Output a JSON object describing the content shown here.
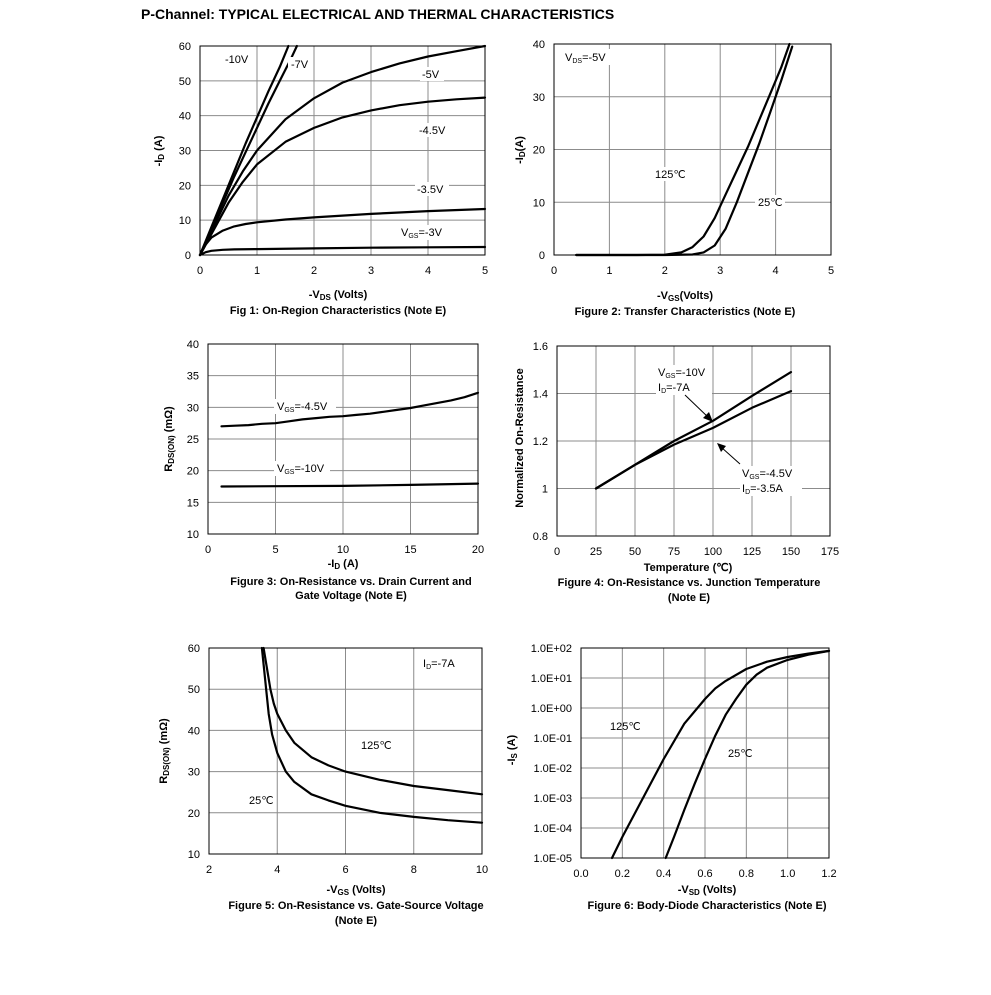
{
  "page": {
    "title": "P-Channel: TYPICAL ELECTRICAL AND THERMAL CHARACTERISTICS"
  },
  "chart_data": [
    {
      "type": "line",
      "title": "Fig 1: On-Region Characteristics (Note E)",
      "xlabel": "-VDS (Volts)",
      "ylabel": "-ID (A)",
      "xlim": [
        0,
        5
      ],
      "ylim": [
        0,
        60
      ],
      "xticks": [
        0,
        1,
        2,
        3,
        4,
        5
      ],
      "yticks": [
        0,
        10,
        20,
        30,
        40,
        50,
        60
      ],
      "grid": true,
      "series": [
        {
          "name": "-10V",
          "x": [
            0,
            0.2,
            0.4,
            0.6,
            0.8,
            1.0,
            1.2,
            1.4,
            1.55
          ],
          "y": [
            0,
            8,
            16,
            24,
            32,
            39.5,
            47,
            54,
            60
          ]
        },
        {
          "name": "-7V",
          "x": [
            0,
            0.2,
            0.4,
            0.6,
            0.8,
            1.0,
            1.2,
            1.4,
            1.6,
            1.7
          ],
          "y": [
            0,
            7.5,
            15,
            22.5,
            29.5,
            36.5,
            43.5,
            50,
            56.5,
            60
          ]
        },
        {
          "name": "-5V",
          "x": [
            0,
            0.25,
            0.5,
            0.75,
            1.0,
            1.5,
            2.0,
            2.5,
            3.0,
            3.5,
            4.0,
            4.5,
            5.0
          ],
          "y": [
            0,
            8.5,
            17,
            24,
            30,
            39,
            45,
            49.5,
            52.5,
            55,
            57,
            58.5,
            60
          ]
        },
        {
          "name": "-4.5V",
          "x": [
            0,
            0.25,
            0.5,
            0.75,
            1.0,
            1.5,
            2.0,
            2.5,
            3.0,
            3.5,
            4.0,
            4.5,
            5.0
          ],
          "y": [
            0,
            7.5,
            15,
            21,
            26,
            32.5,
            36.5,
            39.5,
            41.5,
            43,
            44,
            44.7,
            45.2
          ]
        },
        {
          "name": "-3.5V",
          "x": [
            0,
            0.1,
            0.2,
            0.4,
            0.6,
            0.8,
            1.0,
            1.5,
            2.0,
            3.0,
            4.0,
            5.0
          ],
          "y": [
            0,
            3,
            5,
            7,
            8.2,
            8.9,
            9.4,
            10.2,
            10.8,
            11.8,
            12.6,
            13.2
          ]
        },
        {
          "name": "VGS=-3V",
          "x": [
            0,
            0.1,
            0.2,
            0.4,
            0.6,
            1.0,
            2.0,
            3.0,
            4.0,
            5.0
          ],
          "y": [
            0,
            0.8,
            1.2,
            1.5,
            1.6,
            1.7,
            1.9,
            2.1,
            2.2,
            2.3
          ]
        }
      ],
      "annotations": [
        "-10V",
        "-7V",
        "-5V",
        "-4.5V",
        "-3.5V",
        "VGS=-3V"
      ]
    },
    {
      "type": "line",
      "title": "Figure 2: Transfer Characteristics (Note E)",
      "xlabel": "-VGS(Volts)",
      "ylabel": "-ID (A)",
      "xlim": [
        0,
        5
      ],
      "ylim": [
        0,
        40
      ],
      "xticks": [
        0,
        1,
        2,
        3,
        4,
        5
      ],
      "yticks": [
        0,
        10,
        20,
        30,
        40
      ],
      "grid": true,
      "series": [
        {
          "name": "125℃",
          "x": [
            0.4,
            1.5,
            2.0,
            2.3,
            2.5,
            2.7,
            2.9,
            3.1,
            3.3,
            3.5,
            3.7,
            3.9,
            4.1,
            4.25
          ],
          "y": [
            0,
            0,
            0.05,
            0.5,
            1.5,
            3.5,
            7,
            11.5,
            16,
            20.5,
            25.5,
            30.5,
            35.5,
            40
          ]
        },
        {
          "name": "25℃",
          "x": [
            0.4,
            1.5,
            2.0,
            2.5,
            2.7,
            2.9,
            3.1,
            3.3,
            3.5,
            3.7,
            3.9,
            4.1,
            4.3
          ],
          "y": [
            0,
            0,
            0,
            0.1,
            0.5,
            1.8,
            5,
            10,
            15.5,
            21,
            27,
            33,
            39.5
          ]
        }
      ],
      "annotations": [
        "VDS=-5V",
        "125℃",
        "25℃"
      ]
    },
    {
      "type": "line",
      "title": "Figure 3: On-Resistance vs. Drain Current and Gate Voltage (Note E)",
      "xlabel": "-ID (A)",
      "ylabel": "RDS(ON) (mΩ)",
      "xlim": [
        0,
        20
      ],
      "ylim": [
        10,
        40
      ],
      "xticks": [
        0,
        5,
        10,
        15,
        20
      ],
      "yticks": [
        10,
        15,
        20,
        25,
        30,
        35,
        40
      ],
      "grid": true,
      "series": [
        {
          "name": "VGS=-4.5V",
          "x": [
            1,
            2,
            3,
            4,
            5,
            6,
            7,
            8,
            9,
            10,
            11,
            12,
            13,
            14,
            15,
            16,
            17,
            18,
            19,
            20
          ],
          "y": [
            27,
            27.1,
            27.2,
            27.4,
            27.5,
            27.8,
            28.1,
            28.3,
            28.5,
            28.6,
            28.8,
            29,
            29.3,
            29.6,
            29.9,
            30.3,
            30.7,
            31.1,
            31.6,
            32.3
          ]
        },
        {
          "name": "VGS=-10V",
          "x": [
            1,
            5,
            10,
            15,
            20
          ],
          "y": [
            17.5,
            17.55,
            17.6,
            17.75,
            17.95
          ]
        }
      ],
      "annotations": [
        "VGS=-4.5V",
        "VGS=-10V"
      ]
    },
    {
      "type": "line",
      "title": "Figure 4: On-Resistance vs. Junction Temperature (Note E)",
      "xlabel": "Temperature (℃)",
      "ylabel": "Normalized On-Resistance",
      "xlim": [
        0,
        175
      ],
      "ylim": [
        0.8,
        1.6
      ],
      "xticks": [
        0,
        25,
        50,
        75,
        100,
        125,
        150,
        175
      ],
      "yticks": [
        0.8,
        1,
        1.2,
        1.4,
        1.6
      ],
      "grid": true,
      "series": [
        {
          "name": "VGS=-10V ID=-7A",
          "x": [
            25,
            50,
            75,
            100,
            125,
            150
          ],
          "y": [
            1.0,
            1.1,
            1.2,
            1.285,
            1.39,
            1.49
          ]
        },
        {
          "name": "VGS=-4.5V ID=-3.5A",
          "x": [
            25,
            50,
            75,
            100,
            125,
            150
          ],
          "y": [
            1.0,
            1.1,
            1.185,
            1.255,
            1.34,
            1.41
          ]
        }
      ],
      "annotations": [
        "VGS=-10V",
        "ID=-7A",
        "VGS=-4.5V",
        "ID=-3.5A"
      ]
    },
    {
      "type": "line",
      "title": "Figure 5: On-Resistance vs. Gate-Source Voltage (Note E)",
      "xlabel": "-VGS (Volts)",
      "ylabel": "RDS(ON) (mΩ)",
      "xlim": [
        2,
        10
      ],
      "ylim": [
        10,
        60
      ],
      "xticks": [
        2,
        4,
        6,
        8,
        10
      ],
      "yticks": [
        10,
        20,
        30,
        40,
        50,
        60
      ],
      "grid": true,
      "series": [
        {
          "name": "125℃",
          "x": [
            3.6,
            3.7,
            3.8,
            3.9,
            4.0,
            4.25,
            4.5,
            5.0,
            5.5,
            6.0,
            7.0,
            8.0,
            9.0,
            10.0
          ],
          "y": [
            60,
            55,
            50,
            46.5,
            44,
            40,
            37,
            33.5,
            31.5,
            30,
            28,
            26.5,
            25.5,
            24.5
          ]
        },
        {
          "name": "25℃",
          "x": [
            3.55,
            3.65,
            3.75,
            3.85,
            4.0,
            4.25,
            4.5,
            5.0,
            5.5,
            6.0,
            7.0,
            8.0,
            9.0,
            10.0
          ],
          "y": [
            60,
            52,
            44,
            39,
            34.5,
            30,
            27.5,
            24.5,
            23,
            21.7,
            20,
            19,
            18.2,
            17.6
          ]
        }
      ],
      "annotations": [
        "ID=-7A",
        "125℃",
        "25℃"
      ]
    },
    {
      "type": "line",
      "title": "Figure 6: Body-Diode Characteristics (Note E)",
      "xlabel": "-VSD (Volts)",
      "ylabel": "-IS (A)",
      "xlim": [
        0.0,
        1.2
      ],
      "ylim": [
        "1.0E-05",
        "1.0E+02"
      ],
      "yscale": "log",
      "xticks": [
        "0.0",
        "0.2",
        "0.4",
        "0.6",
        "0.8",
        "1.0",
        "1.2"
      ],
      "yticks": [
        "1.0E-05",
        "1.0E-04",
        "1.0E-03",
        "1.0E-02",
        "1.0E-01",
        "1.0E+00",
        "1.0E+01",
        "1.0E+02"
      ],
      "grid": true,
      "series": [
        {
          "name": "125℃",
          "x": [
            0.15,
            0.2,
            0.3,
            0.4,
            0.5,
            0.6,
            0.65,
            0.7,
            0.8,
            0.9,
            1.0,
            1.1,
            1.2
          ],
          "y": [
            1e-05,
            5e-05,
            0.001,
            0.02,
            0.3,
            2,
            4.5,
            8,
            20,
            35,
            50,
            65,
            80
          ]
        },
        {
          "name": "25℃",
          "x": [
            0.41,
            0.45,
            0.5,
            0.55,
            0.6,
            0.65,
            0.7,
            0.75,
            0.8,
            0.85,
            0.9,
            1.0,
            1.1,
            1.2
          ],
          "y": [
            1e-05,
            5e-05,
            0.0004,
            0.003,
            0.02,
            0.12,
            0.6,
            2,
            6,
            13,
            22,
            40,
            60,
            80
          ]
        }
      ],
      "annotations": [
        "125℃",
        "25℃"
      ]
    }
  ],
  "labels": {
    "c1": {
      "ylabel_main": "-I",
      "ylabel_sub": "D",
      "ylabel_tail": " (A)",
      "xlabel_main": "-V",
      "xlabel_sub": "DS",
      "xlabel_tail": " (Volts)",
      "ann_10v": "-10V",
      "ann_7v": "-7V",
      "ann_5v": "-5V",
      "ann_45v": "-4.5V",
      "ann_35v": "-3.5V",
      "ann_3v_main": "V",
      "ann_3v_sub": "GS",
      "ann_3v_tail": "=-3V"
    },
    "c2": {
      "ylabel_main": "-I",
      "ylabel_sub": "D",
      "ylabel_tail": "(A)",
      "xlabel_main": "-V",
      "xlabel_sub": "GS",
      "xlabel_tail": "(Volts)",
      "ann_vds_main": "V",
      "ann_vds_sub": "DS",
      "ann_vds_tail": "=-5V",
      "ann_125": "125℃",
      "ann_25": "25℃"
    },
    "c3": {
      "ylabel_main": "R",
      "ylabel_sub": "DS(ON)",
      "ylabel_tail": " (mΩ)",
      "xlabel_main": "-I",
      "xlabel_sub": "D",
      "xlabel_tail": " (A)",
      "ann_45_main": "V",
      "ann_45_sub": "GS",
      "ann_45_tail": "=-4.5V",
      "ann_10_main": "V",
      "ann_10_sub": "GS",
      "ann_10_tail": "=-10V",
      "title_line1": "Figure 3: On-Resistance vs. Drain Current and",
      "title_line2": "Gate Voltage (Note E)"
    },
    "c4": {
      "ylabel": "Normalized On-Resistance",
      "xlabel": "Temperature (℃)",
      "ann_a1_main": "V",
      "ann_a1_sub": "GS",
      "ann_a1_tail": "=-10V",
      "ann_a2_main": "I",
      "ann_a2_sub": "D",
      "ann_a2_tail": "=-7A",
      "ann_b1_main": "V",
      "ann_b1_sub": "GS",
      "ann_b1_tail": "=-4.5V",
      "ann_b2_main": "I",
      "ann_b2_sub": "D",
      "ann_b2_tail": "=-3.5A",
      "title_line1": "Figure 4: On-Resistance vs. Junction Temperature",
      "title_line2": "(Note E)"
    },
    "c5": {
      "ylabel_main": "R",
      "ylabel_sub": "DS(ON)",
      "ylabel_tail": " (mΩ)",
      "xlabel_main": "-V",
      "xlabel_sub": "GS",
      "xlabel_tail": " (Volts)",
      "ann_id_main": "I",
      "ann_id_sub": "D",
      "ann_id_tail": "=-7A",
      "ann_125": "125℃",
      "ann_25": "25℃",
      "title_line1": "Figure 5: On-Resistance vs. Gate-Source Voltage",
      "title_line2": "(Note E)"
    },
    "c6": {
      "ylabel_main": "-I",
      "ylabel_sub": "S",
      "ylabel_tail": " (A)",
      "xlabel_main": "-V",
      "xlabel_sub": "SD",
      "xlabel_tail": " (Volts)",
      "ann_125": "125℃",
      "ann_25": "25℃"
    }
  }
}
